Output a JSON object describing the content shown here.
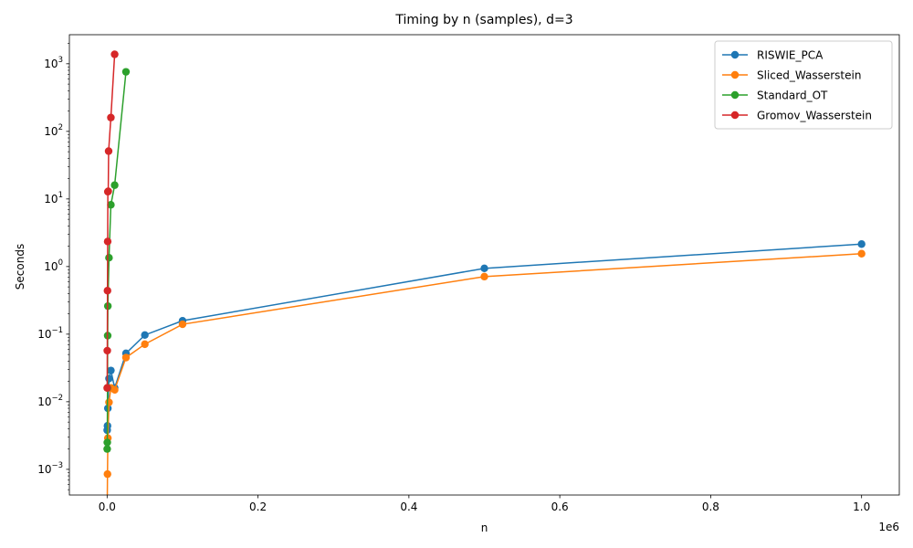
{
  "chart_data": {
    "type": "line",
    "title": "Timing by n (samples), d=3",
    "xlabel": "n",
    "ylabel": "Seconds",
    "x_offset_label": "1e6",
    "x_scale_label": 1000000,
    "y_scale": "log",
    "xlim": [
      -50000,
      1050000
    ],
    "ylim_log10": [
      -3.38,
      3.43
    ],
    "grid": false,
    "legend_position": "top-right",
    "x_ticks": [
      {
        "value": 0,
        "label": "0.0"
      },
      {
        "value": 200000,
        "label": "0.2"
      },
      {
        "value": 400000,
        "label": "0.4"
      },
      {
        "value": 600000,
        "label": "0.6"
      },
      {
        "value": 800000,
        "label": "0.8"
      },
      {
        "value": 1000000,
        "label": "1.0"
      }
    ],
    "y_ticks": [
      {
        "exp": -3,
        "label": "10",
        "sup": "−3"
      },
      {
        "exp": -2,
        "label": "10",
        "sup": "−2"
      },
      {
        "exp": -1,
        "label": "10",
        "sup": "−1"
      },
      {
        "exp": 0,
        "label": "10",
        "sup": "0"
      },
      {
        "exp": 1,
        "label": "10",
        "sup": "1"
      },
      {
        "exp": 2,
        "label": "10",
        "sup": "2"
      },
      {
        "exp": 3,
        "label": "10",
        "sup": "3"
      }
    ],
    "series": [
      {
        "name": "RISWIE_PCA",
        "color": "#1f77b4",
        "x": [
          100,
          500,
          1000,
          2500,
          5000,
          10000,
          25000,
          50000,
          100000,
          500000,
          1000000
        ],
        "y": [
          0.0038,
          0.0044,
          0.008,
          0.022,
          0.029,
          0.016,
          0.052,
          0.097,
          0.158,
          0.94,
          2.15
        ]
      },
      {
        "name": "Sliced_Wasserstein",
        "color": "#ff7f0e",
        "x": [
          100,
          500,
          1000,
          2500,
          5000,
          10000,
          25000,
          50000,
          100000,
          500000,
          1000000
        ],
        "y": [
          0.00025,
          0.00085,
          0.0029,
          0.0098,
          0.016,
          0.015,
          0.045,
          0.071,
          0.14,
          0.71,
          1.55
        ]
      },
      {
        "name": "Standard_OT",
        "color": "#2ca02c",
        "x": [
          100,
          250,
          500,
          750,
          1000,
          2500,
          5000,
          10000,
          25000
        ],
        "y": [
          0.002,
          0.0025,
          0.016,
          0.095,
          0.26,
          1.35,
          8.2,
          16.0,
          760
        ]
      },
      {
        "name": "Gromov_Wasserstein",
        "color": "#d62728",
        "x": [
          100,
          250,
          500,
          750,
          1000,
          1500,
          2000,
          5000,
          10000
        ],
        "y": [
          0.016,
          0.057,
          0.44,
          2.35,
          12.8,
          13.0,
          51,
          160,
          1380
        ]
      }
    ]
  }
}
